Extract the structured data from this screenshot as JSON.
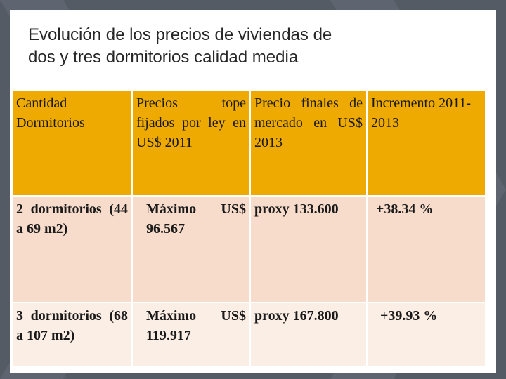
{
  "slide": {
    "title_line1": "Evolución de los precios de viviendas de",
    "title_line2": "dos y tres dormitorios calidad media"
  },
  "table": {
    "headers": [
      "Cantidad Dormitorios",
      "Precios tope fijados por ley en US$ 2011",
      "Precio finales de mercado en US$ 2013",
      "Incremento 2011- 2013"
    ],
    "rows": [
      {
        "dormitorios": "2 dormitorios (44 a 69 m2)",
        "precio_tope": "Máximo US$ 96.567",
        "precio_final": "proxy 133.600",
        "incremento": "+38.34 %"
      },
      {
        "dormitorios": "3 dormitorios (68 a 107 m2)",
        "precio_tope": "Máximo US$ 119.917",
        "precio_final": "proxy 167.800",
        "incremento": "+39.93 %"
      }
    ]
  },
  "colors": {
    "background": "#555b65",
    "header_fill": "#eeaa00",
    "row1_fill": "#f7dccb",
    "row2_fill": "#fbeee5"
  }
}
